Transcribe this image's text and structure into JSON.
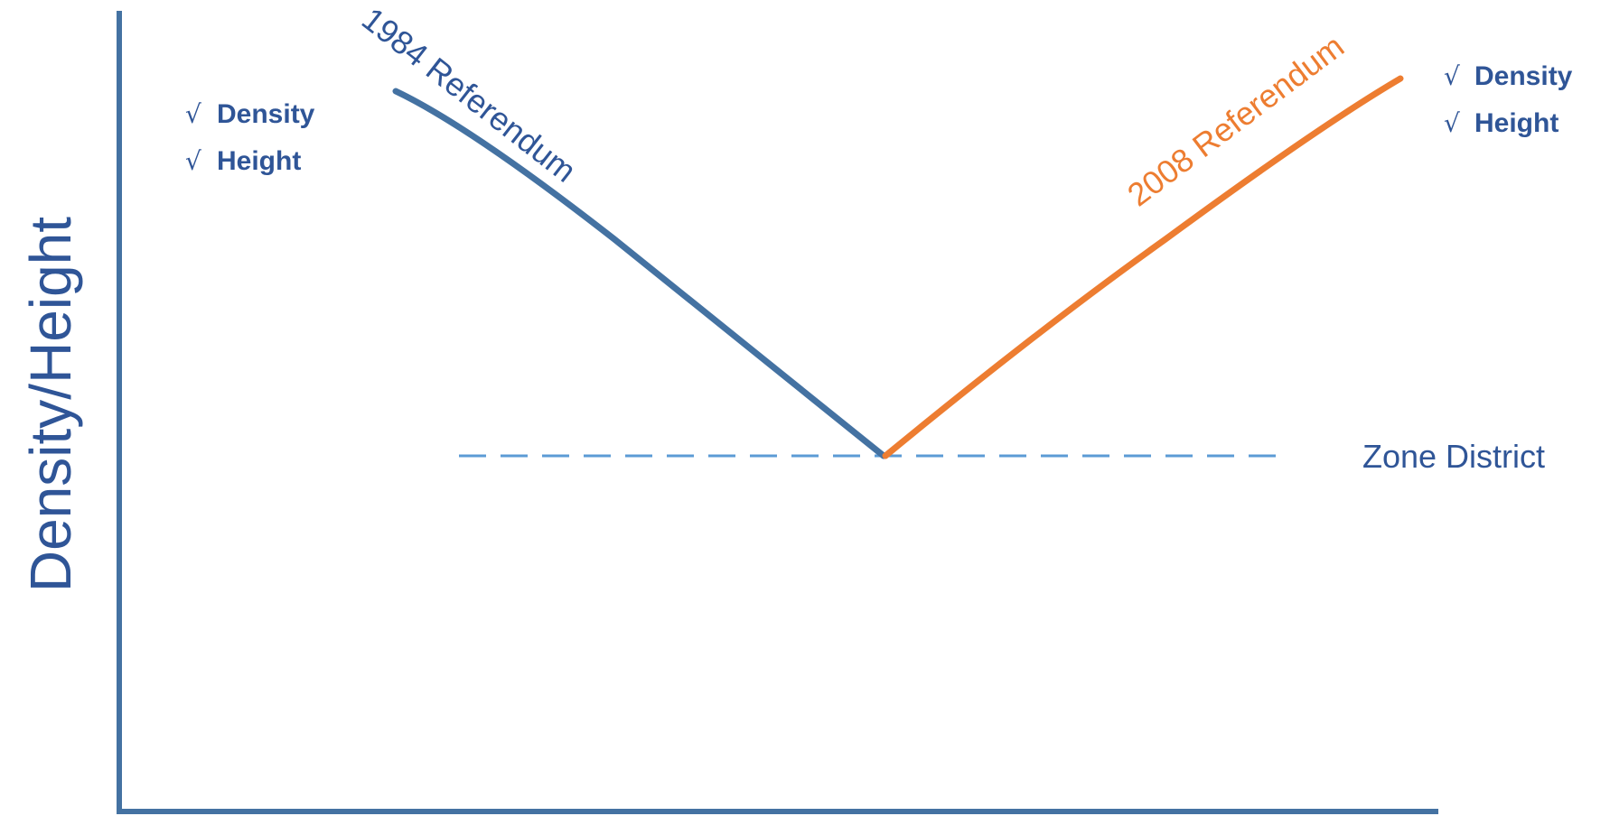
{
  "colors": {
    "axis": "#4472a2",
    "blue_line": "#4472a2",
    "blue_text": "#2f5597",
    "orange": "#ed7d31",
    "dashed": "#5b9bd5"
  },
  "y_axis_label": "Density/Height",
  "referendum_1984": "1984 Referendum",
  "referendum_2008": "2008 Referendum",
  "zone_district": "Zone District",
  "left_checks": [
    "Density",
    "Height"
  ],
  "right_checks": [
    "Density",
    "Height"
  ],
  "check_mark": "√"
}
